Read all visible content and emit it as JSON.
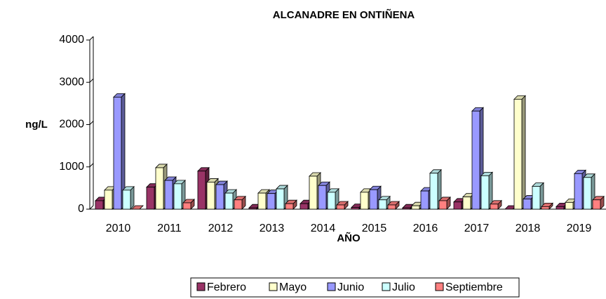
{
  "chart_data": {
    "type": "bar3d",
    "title": "ALCANADRE EN ONTIÑENA",
    "xlabel": "AÑO",
    "ylabel": "ng/L",
    "categories": [
      "2010",
      "2011",
      "2012",
      "2013",
      "2014",
      "2015",
      "2016",
      "2017",
      "2018",
      "2019"
    ],
    "series": [
      {
        "name": "Febrero",
        "color": "#993366",
        "values": [
          200,
          520,
          900,
          30,
          130,
          40,
          30,
          170,
          0,
          60
        ]
      },
      {
        "name": "Mayo",
        "color": "#ffffcc",
        "values": [
          450,
          980,
          640,
          380,
          780,
          400,
          80,
          290,
          2600,
          160
        ]
      },
      {
        "name": "Junio",
        "color": "#9999ff",
        "values": [
          2650,
          680,
          580,
          370,
          560,
          460,
          430,
          2320,
          240,
          840
        ]
      },
      {
        "name": "Julio",
        "color": "#ccffff",
        "values": [
          450,
          600,
          380,
          480,
          400,
          220,
          850,
          790,
          540,
          750
        ]
      },
      {
        "name": "Septiembre",
        "color": "#ff8080",
        "values": [
          0,
          150,
          220,
          130,
          100,
          100,
          200,
          120,
          60,
          220
        ]
      }
    ],
    "ylim": [
      0,
      4000
    ],
    "yticks": [
      0,
      1000,
      2000,
      3000,
      4000
    ]
  }
}
